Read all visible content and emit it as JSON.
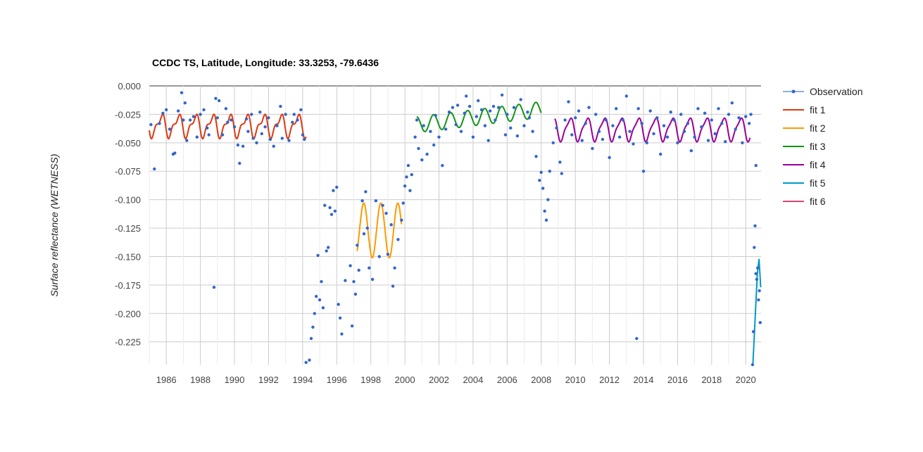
{
  "chart_data": {
    "type": "line",
    "title": "CCDC TS, Latitude, Longitude: 33.3253, -79.6436",
    "xlabel": "",
    "ylabel": "Surface reflectance (WETNESS)",
    "xlim": [
      1985.0,
      2020.9
    ],
    "ylim": [
      -0.245,
      0.0
    ],
    "xticks": [
      "1986",
      "1988",
      "1990",
      "1992",
      "1994",
      "1996",
      "1998",
      "2000",
      "2002",
      "2004",
      "2006",
      "2008",
      "2010",
      "2012",
      "2014",
      "2016",
      "2018",
      "2020"
    ],
    "yticks": [
      "0.000",
      "-0.025",
      "-0.050",
      "-0.075",
      "-0.100",
      "-0.125",
      "-0.150",
      "-0.175",
      "-0.200",
      "-0.225"
    ],
    "grid": true,
    "legend_position": "right",
    "colors": {
      "Observation": "#3366cc",
      "fit 1": "#dc3912",
      "fit 2": "#ff9900",
      "fit 3": "#109618",
      "fit 4": "#990099",
      "fit 5": "#0099c6",
      "fit 6": "#dd4477"
    },
    "legend": [
      "Observation",
      "fit 1",
      "fit 2",
      "fit 3",
      "fit 4",
      "fit 5",
      "fit 6"
    ],
    "observations": [
      [
        1985.1,
        -0.034
      ],
      [
        1985.3,
        -0.073
      ],
      [
        1985.6,
        -0.033
      ],
      [
        1985.8,
        -0.024
      ],
      [
        1986.0,
        -0.021
      ],
      [
        1986.2,
        -0.038
      ],
      [
        1986.4,
        -0.06
      ],
      [
        1986.5,
        -0.059
      ],
      [
        1986.7,
        -0.022
      ],
      [
        1986.9,
        -0.006
      ],
      [
        1987.0,
        -0.03
      ],
      [
        1987.1,
        -0.015
      ],
      [
        1987.2,
        -0.048
      ],
      [
        1987.4,
        -0.03
      ],
      [
        1987.6,
        -0.027
      ],
      [
        1987.8,
        -0.045
      ],
      [
        1988.0,
        -0.025
      ],
      [
        1988.2,
        -0.021
      ],
      [
        1988.4,
        -0.037
      ],
      [
        1988.5,
        -0.043
      ],
      [
        1988.8,
        -0.177
      ],
      [
        1988.9,
        -0.011
      ],
      [
        1989.0,
        -0.028
      ],
      [
        1989.1,
        -0.013
      ],
      [
        1989.3,
        -0.043
      ],
      [
        1989.5,
        -0.02
      ],
      [
        1989.6,
        -0.032
      ],
      [
        1989.8,
        -0.03
      ],
      [
        1990.0,
        -0.036
      ],
      [
        1990.2,
        -0.052
      ],
      [
        1990.3,
        -0.068
      ],
      [
        1990.5,
        -0.053
      ],
      [
        1990.7,
        -0.029
      ],
      [
        1990.8,
        -0.04
      ],
      [
        1991.0,
        -0.025
      ],
      [
        1991.1,
        -0.046
      ],
      [
        1991.3,
        -0.05
      ],
      [
        1991.5,
        -0.023
      ],
      [
        1991.6,
        -0.042
      ],
      [
        1991.8,
        -0.036
      ],
      [
        1992.0,
        -0.028
      ],
      [
        1992.1,
        -0.047
      ],
      [
        1992.3,
        -0.053
      ],
      [
        1992.5,
        -0.035
      ],
      [
        1992.7,
        -0.018
      ],
      [
        1992.8,
        -0.046
      ],
      [
        1993.0,
        -0.025
      ],
      [
        1993.2,
        -0.048
      ],
      [
        1993.4,
        -0.032
      ],
      [
        1993.5,
        -0.025
      ],
      [
        1993.7,
        -0.03
      ],
      [
        1993.9,
        -0.021
      ],
      [
        1994.0,
        -0.043
      ],
      [
        1994.1,
        -0.047
      ],
      [
        1994.2,
        -0.243
      ],
      [
        1994.4,
        -0.241
      ],
      [
        1994.5,
        -0.222
      ],
      [
        1994.6,
        -0.212
      ],
      [
        1994.7,
        -0.2
      ],
      [
        1994.8,
        -0.185
      ],
      [
        1994.9,
        -0.149
      ],
      [
        1995.0,
        -0.188
      ],
      [
        1995.1,
        -0.172
      ],
      [
        1995.2,
        -0.195
      ],
      [
        1995.3,
        -0.105
      ],
      [
        1995.4,
        -0.145
      ],
      [
        1995.5,
        -0.142
      ],
      [
        1995.6,
        -0.107
      ],
      [
        1995.7,
        -0.113
      ],
      [
        1995.8,
        -0.092
      ],
      [
        1995.9,
        -0.11
      ],
      [
        1996.0,
        -0.089
      ],
      [
        1996.1,
        -0.192
      ],
      [
        1996.2,
        -0.204
      ],
      [
        1996.3,
        -0.218
      ],
      [
        1996.5,
        -0.171
      ],
      [
        1996.8,
        -0.158
      ],
      [
        1996.9,
        -0.211
      ],
      [
        1997.0,
        -0.172
      ],
      [
        1997.1,
        -0.183
      ],
      [
        1997.2,
        -0.14
      ],
      [
        1997.3,
        -0.162
      ],
      [
        1997.5,
        -0.101
      ],
      [
        1997.6,
        -0.13
      ],
      [
        1997.7,
        -0.093
      ],
      [
        1997.8,
        -0.125
      ],
      [
        1997.9,
        -0.16
      ],
      [
        1998.1,
        -0.17
      ],
      [
        1998.3,
        -0.101
      ],
      [
        1998.5,
        -0.15
      ],
      [
        1998.7,
        -0.105
      ],
      [
        1998.9,
        -0.112
      ],
      [
        1999.0,
        -0.148
      ],
      [
        1999.2,
        -0.122
      ],
      [
        1999.3,
        -0.176
      ],
      [
        1999.4,
        -0.16
      ],
      [
        1999.6,
        -0.135
      ],
      [
        1999.8,
        -0.118
      ],
      [
        1999.9,
        -0.103
      ],
      [
        2000.0,
        -0.088
      ],
      [
        2000.1,
        -0.08
      ],
      [
        2000.2,
        -0.07
      ],
      [
        2000.3,
        -0.092
      ],
      [
        2000.4,
        -0.078
      ],
      [
        2000.6,
        -0.045
      ],
      [
        2000.7,
        -0.03
      ],
      [
        2000.8,
        -0.055
      ],
      [
        2001.0,
        -0.065
      ],
      [
        2001.1,
        -0.035
      ],
      [
        2001.3,
        -0.06
      ],
      [
        2001.5,
        -0.04
      ],
      [
        2001.7,
        -0.052
      ],
      [
        2001.8,
        -0.026
      ],
      [
        2002.0,
        -0.045
      ],
      [
        2002.2,
        -0.07
      ],
      [
        2002.4,
        -0.038
      ],
      [
        2002.6,
        -0.023
      ],
      [
        2002.8,
        -0.019
      ],
      [
        2003.0,
        -0.034
      ],
      [
        2003.1,
        -0.017
      ],
      [
        2003.3,
        -0.04
      ],
      [
        2003.5,
        -0.024
      ],
      [
        2003.6,
        -0.009
      ],
      [
        2003.8,
        -0.018
      ],
      [
        2004.0,
        -0.045
      ],
      [
        2004.2,
        -0.027
      ],
      [
        2004.3,
        -0.013
      ],
      [
        2004.5,
        -0.021
      ],
      [
        2004.7,
        -0.035
      ],
      [
        2004.9,
        -0.048
      ],
      [
        2005.0,
        -0.022
      ],
      [
        2005.2,
        -0.018
      ],
      [
        2005.3,
        -0.03
      ],
      [
        2005.5,
        -0.019
      ],
      [
        2005.7,
        -0.008
      ],
      [
        2005.9,
        -0.043
      ],
      [
        2006.0,
        -0.025
      ],
      [
        2006.2,
        -0.037
      ],
      [
        2006.4,
        -0.019
      ],
      [
        2006.6,
        -0.044
      ],
      [
        2006.8,
        -0.012
      ],
      [
        2007.0,
        -0.035
      ],
      [
        2007.2,
        -0.023
      ],
      [
        2007.3,
        -0.028
      ],
      [
        2007.5,
        -0.04
      ],
      [
        2007.7,
        -0.062
      ],
      [
        2007.9,
        -0.083
      ],
      [
        2008.0,
        -0.076
      ],
      [
        2008.1,
        -0.09
      ],
      [
        2008.2,
        -0.11
      ],
      [
        2008.3,
        -0.118
      ],
      [
        2008.4,
        -0.1
      ],
      [
        2008.5,
        -0.075
      ],
      [
        2008.7,
        -0.05
      ],
      [
        2008.9,
        -0.037
      ],
      [
        2009.1,
        -0.067
      ],
      [
        2009.2,
        -0.077
      ],
      [
        2009.4,
        -0.03
      ],
      [
        2009.6,
        -0.014
      ],
      [
        2009.8,
        -0.043
      ],
      [
        2010.0,
        -0.028
      ],
      [
        2010.2,
        -0.022
      ],
      [
        2010.4,
        -0.048
      ],
      [
        2010.6,
        -0.033
      ],
      [
        2010.8,
        -0.019
      ],
      [
        2011.0,
        -0.055
      ],
      [
        2011.2,
        -0.025
      ],
      [
        2011.4,
        -0.04
      ],
      [
        2011.6,
        -0.047
      ],
      [
        2011.8,
        -0.03
      ],
      [
        2012.0,
        -0.063
      ],
      [
        2012.2,
        -0.035
      ],
      [
        2012.4,
        -0.02
      ],
      [
        2012.6,
        -0.045
      ],
      [
        2012.8,
        -0.03
      ],
      [
        2013.0,
        -0.009
      ],
      [
        2013.2,
        -0.04
      ],
      [
        2013.4,
        -0.051
      ],
      [
        2013.6,
        -0.222
      ],
      [
        2013.7,
        -0.02
      ],
      [
        2013.9,
        -0.033
      ],
      [
        2014.0,
        -0.075
      ],
      [
        2014.2,
        -0.05
      ],
      [
        2014.4,
        -0.022
      ],
      [
        2014.6,
        -0.042
      ],
      [
        2014.8,
        -0.028
      ],
      [
        2015.0,
        -0.06
      ],
      [
        2015.2,
        -0.035
      ],
      [
        2015.4,
        -0.045
      ],
      [
        2015.6,
        -0.023
      ],
      [
        2015.8,
        -0.03
      ],
      [
        2016.0,
        -0.05
      ],
      [
        2016.2,
        -0.025
      ],
      [
        2016.4,
        -0.04
      ],
      [
        2016.6,
        -0.033
      ],
      [
        2016.8,
        -0.057
      ],
      [
        2017.0,
        -0.045
      ],
      [
        2017.2,
        -0.02
      ],
      [
        2017.4,
        -0.036
      ],
      [
        2017.6,
        -0.024
      ],
      [
        2017.8,
        -0.048
      ],
      [
        2018.0,
        -0.03
      ],
      [
        2018.2,
        -0.042
      ],
      [
        2018.4,
        -0.02
      ],
      [
        2018.6,
        -0.033
      ],
      [
        2018.8,
        -0.049
      ],
      [
        2019.0,
        -0.025
      ],
      [
        2019.2,
        -0.015
      ],
      [
        2019.4,
        -0.038
      ],
      [
        2019.6,
        -0.028
      ],
      [
        2019.8,
        -0.05
      ],
      [
        2020.0,
        -0.027
      ],
      [
        2020.2,
        -0.033
      ],
      [
        2020.3,
        -0.025
      ],
      [
        2020.4,
        -0.245
      ],
      [
        2020.45,
        -0.216
      ],
      [
        2020.5,
        -0.142
      ],
      [
        2020.55,
        -0.123
      ],
      [
        2020.6,
        -0.165
      ],
      [
        2020.65,
        -0.17
      ],
      [
        2020.7,
        -0.16
      ],
      [
        2020.75,
        -0.188
      ],
      [
        2020.8,
        -0.18
      ],
      [
        2020.85,
        -0.208
      ],
      [
        2020.6,
        -0.07
      ]
    ],
    "fits": [
      {
        "name": "fit 1",
        "start": 1985.0,
        "end": 1994.2,
        "offset": -0.035,
        "amp": 0.0085,
        "phase": 1.9,
        "harm2": 0.004
      },
      {
        "name": "fit 2",
        "start": 1997.2,
        "end": 1999.8,
        "offset": -0.127,
        "amp": 0.024,
        "phase": 2.6,
        "harm2": 0.0
      },
      {
        "name": "fit 3",
        "start": 2000.7,
        "end": 2008.0,
        "offset": -0.034,
        "amp": 0.007,
        "phase": 2.0,
        "harm2": 0.0,
        "trend": 0.0018
      },
      {
        "name": "fit 4",
        "start": 2008.8,
        "end": 2020.25,
        "offset": -0.038,
        "amp": 0.0095,
        "phase": 2.0,
        "harm2": 0.0025
      },
      {
        "name": "fit 5",
        "start": 2020.42,
        "end": 2020.9,
        "offset": -0.245,
        "amp": 0.0,
        "phase": 0.0,
        "harm2": 0.0,
        "curve": [
          [
            2020.42,
            -0.245
          ],
          [
            2020.55,
            -0.205
          ],
          [
            2020.68,
            -0.165
          ],
          [
            2020.78,
            -0.152
          ],
          [
            2020.88,
            -0.177
          ]
        ]
      }
    ]
  }
}
